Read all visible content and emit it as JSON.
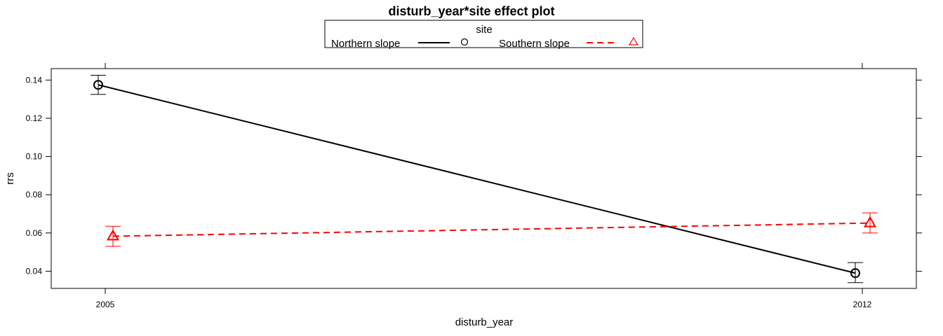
{
  "chart_data": {
    "type": "line",
    "title": "disturb_year*site effect plot",
    "xlabel": "disturb_year",
    "ylabel": "rrs",
    "categories": [
      "2005",
      "2012"
    ],
    "x": [
      2005,
      2012
    ],
    "ylim": [
      0.031,
      0.146
    ],
    "yticks": [
      "0.04",
      "0.06",
      "0.08",
      "0.10",
      "0.12",
      "0.14"
    ],
    "legend": {
      "title": "site",
      "placement": "top"
    },
    "series": [
      {
        "name": "Northern slope",
        "color": "#000000",
        "line": "solid",
        "marker": "circle",
        "values": [
          0.1375,
          0.039
        ],
        "lower": [
          0.1325,
          0.034
        ],
        "upper": [
          0.1425,
          0.0445
        ]
      },
      {
        "name": "Southern slope",
        "color": "#ff0000",
        "line": "dashed",
        "marker": "triangle",
        "values": [
          0.0583,
          0.0652
        ],
        "lower": [
          0.053,
          0.06
        ],
        "upper": [
          0.0635,
          0.0705
        ]
      }
    ]
  }
}
